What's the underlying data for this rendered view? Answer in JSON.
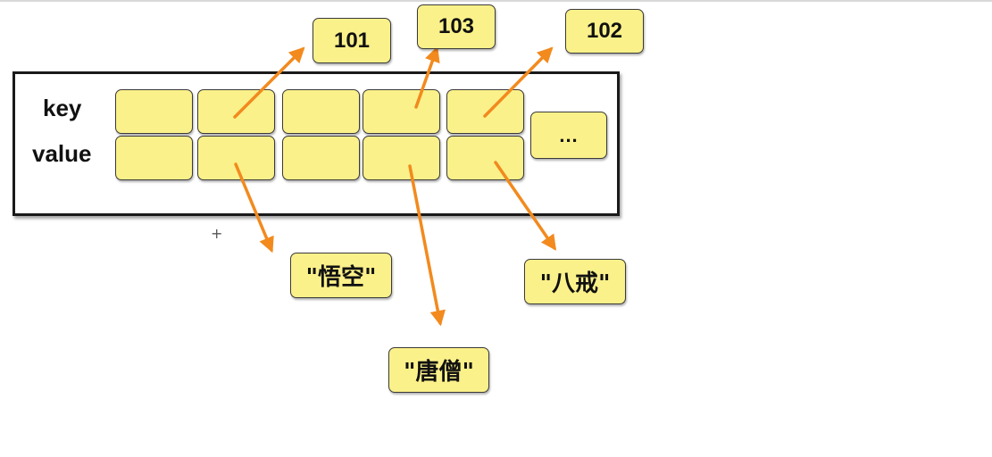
{
  "diagram": {
    "row_labels": {
      "key": "key",
      "value": "value"
    },
    "overflow_cell": "...",
    "keys": [
      "101",
      "103",
      "102"
    ],
    "values": [
      "\"悟空\"",
      "\"唐僧\"",
      "\"八戒\""
    ],
    "colors": {
      "box_fill": "#fbf18a",
      "arrow": "#f28a1e",
      "border": "#1a1a1a"
    },
    "cursor_glyph": "+"
  }
}
